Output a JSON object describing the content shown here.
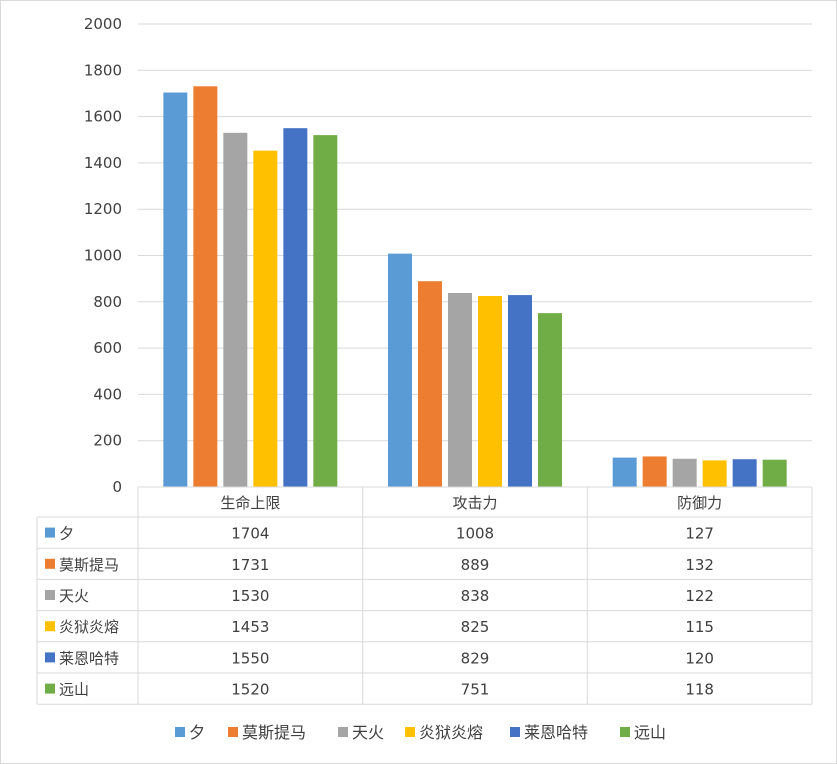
{
  "chart_data": {
    "type": "bar",
    "categories": [
      "生命上限",
      "攻击力",
      "防御力"
    ],
    "series": [
      {
        "name": "夕",
        "color": "#5b9bd5",
        "values": [
          1704,
          1008,
          127
        ]
      },
      {
        "name": "莫斯提马",
        "color": "#ed7d31",
        "values": [
          1731,
          889,
          132
        ]
      },
      {
        "name": "天火",
        "color": "#a5a5a5",
        "values": [
          1530,
          838,
          122
        ]
      },
      {
        "name": "炎狱炎熔",
        "color": "#ffc000",
        "values": [
          1453,
          825,
          115
        ]
      },
      {
        "name": "莱恩哈特",
        "color": "#4472c4",
        "values": [
          1550,
          829,
          120
        ]
      },
      {
        "name": "远山",
        "color": "#70ad47",
        "values": [
          1520,
          751,
          118
        ]
      }
    ],
    "yticks": [
      0,
      200,
      400,
      600,
      800,
      1000,
      1200,
      1400,
      1600,
      1800,
      2000
    ],
    "ylim": [
      0,
      2000
    ],
    "grid": true,
    "legend": "bottom",
    "data_table": true
  }
}
